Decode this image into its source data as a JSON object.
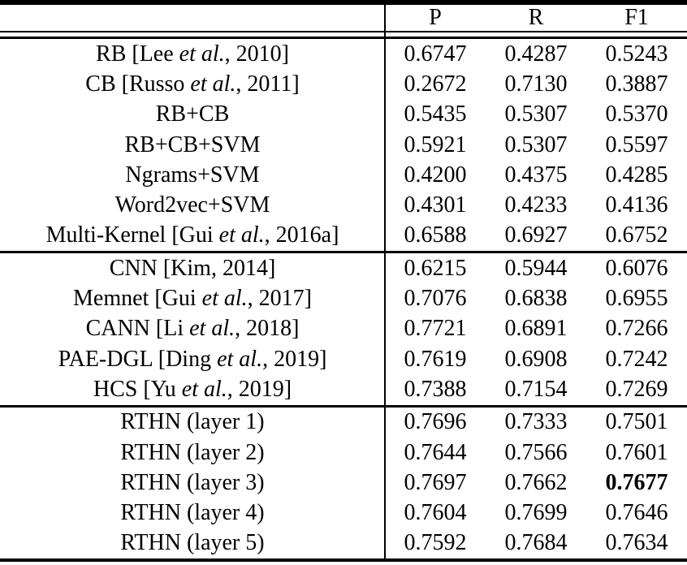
{
  "table": {
    "columns": [
      "P",
      "R",
      "F1"
    ],
    "groups": [
      {
        "rows": [
          {
            "parts": [
              {
                "t": "RB [Lee "
              },
              {
                "t": "et al.",
                "i": true
              },
              {
                "t": ", 2010]"
              }
            ],
            "values": [
              "0.6747",
              "0.4287",
              "0.5243"
            ],
            "bold": null
          },
          {
            "parts": [
              {
                "t": "CB [Russo "
              },
              {
                "t": "et al.",
                "i": true
              },
              {
                "t": ", 2011]"
              }
            ],
            "values": [
              "0.2672",
              "0.7130",
              "0.3887"
            ],
            "bold": null
          },
          {
            "parts": [
              {
                "t": "RB+CB"
              }
            ],
            "values": [
              "0.5435",
              "0.5307",
              "0.5370"
            ],
            "bold": null
          },
          {
            "parts": [
              {
                "t": "RB+CB+SVM"
              }
            ],
            "values": [
              "0.5921",
              "0.5307",
              "0.5597"
            ],
            "bold": null
          },
          {
            "parts": [
              {
                "t": "Ngrams+SVM"
              }
            ],
            "values": [
              "0.4200",
              "0.4375",
              "0.4285"
            ],
            "bold": null
          },
          {
            "parts": [
              {
                "t": "Word2vec+SVM"
              }
            ],
            "values": [
              "0.4301",
              "0.4233",
              "0.4136"
            ],
            "bold": null
          },
          {
            "parts": [
              {
                "t": "Multi-Kernel [Gui "
              },
              {
                "t": "et al.",
                "i": true
              },
              {
                "t": ", 2016a]"
              }
            ],
            "values": [
              "0.6588",
              "0.6927",
              "0.6752"
            ],
            "bold": null
          }
        ]
      },
      {
        "rows": [
          {
            "parts": [
              {
                "t": "CNN [Kim, 2014]"
              }
            ],
            "values": [
              "0.6215",
              "0.5944",
              "0.6076"
            ],
            "bold": null
          },
          {
            "parts": [
              {
                "t": "Memnet [Gui "
              },
              {
                "t": "et al.",
                "i": true
              },
              {
                "t": ", 2017]"
              }
            ],
            "values": [
              "0.7076",
              "0.6838",
              "0.6955"
            ],
            "bold": null
          },
          {
            "parts": [
              {
                "t": "CANN [Li "
              },
              {
                "t": "et al.",
                "i": true
              },
              {
                "t": ", 2018]"
              }
            ],
            "values": [
              "0.7721",
              "0.6891",
              "0.7266"
            ],
            "bold": null
          },
          {
            "parts": [
              {
                "t": "PAE-DGL [Ding "
              },
              {
                "t": "et al.",
                "i": true
              },
              {
                "t": ", 2019]"
              }
            ],
            "values": [
              "0.7619",
              "0.6908",
              "0.7242"
            ],
            "bold": null
          },
          {
            "parts": [
              {
                "t": "HCS [Yu "
              },
              {
                "t": "et al.",
                "i": true
              },
              {
                "t": ", 2019]"
              }
            ],
            "values": [
              "0.7388",
              "0.7154",
              "0.7269"
            ],
            "bold": null
          }
        ]
      },
      {
        "rows": [
          {
            "parts": [
              {
                "t": "RTHN (layer 1)"
              }
            ],
            "values": [
              "0.7696",
              "0.7333",
              "0.7501"
            ],
            "bold": null
          },
          {
            "parts": [
              {
                "t": "RTHN (layer 2)"
              }
            ],
            "values": [
              "0.7644",
              "0.7566",
              "0.7601"
            ],
            "bold": null
          },
          {
            "parts": [
              {
                "t": "RTHN (layer 3)"
              }
            ],
            "values": [
              "0.7697",
              "0.7662",
              "0.7677"
            ],
            "bold": 2
          },
          {
            "parts": [
              {
                "t": "RTHN (layer 4)"
              }
            ],
            "values": [
              "0.7604",
              "0.7699",
              "0.7646"
            ],
            "bold": null
          },
          {
            "parts": [
              {
                "t": "RTHN (layer 5)"
              }
            ],
            "values": [
              "0.7592",
              "0.7684",
              "0.7634"
            ],
            "bold": null
          }
        ]
      }
    ]
  },
  "colors": {
    "text": "#000000",
    "background": "#ffffff",
    "rule": "#000000"
  }
}
